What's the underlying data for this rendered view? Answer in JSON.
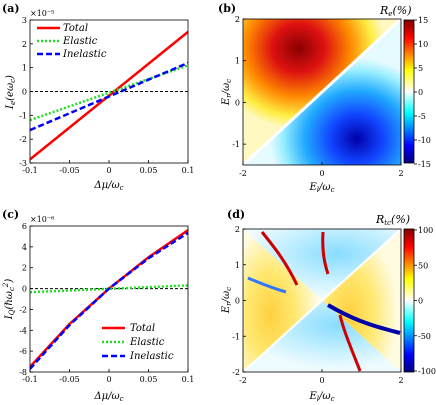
{
  "chart_data": [
    {
      "id": "a",
      "type": "line",
      "panel_label": "(a)",
      "multiplier": "×10⁻⁵",
      "ylabel": "I_e(eω_c)",
      "xlabel": "Δμ/ω_c",
      "xlim": [
        -0.1,
        0.1
      ],
      "ylim": [
        -3,
        3
      ],
      "x_ticks": [
        "-0.1",
        "-0.05",
        "0",
        "0.05",
        "0.1"
      ],
      "y_ticks": [
        "-3",
        "-2",
        "-1",
        "0",
        "1",
        "2",
        "3"
      ],
      "legend": {
        "position": "top-left",
        "labels": [
          "Total",
          "Elastic",
          "Inelastic"
        ]
      },
      "zero_line": true,
      "series": [
        {
          "name": "Total",
          "color": "#ff0000",
          "style": "solid",
          "x": [
            -0.1,
            0.1
          ],
          "y": [
            -2.85,
            2.5
          ]
        },
        {
          "name": "Elastic",
          "color": "#22dd22",
          "style": "dotted",
          "x": [
            -0.1,
            0.1
          ],
          "y": [
            -1.2,
            1.1
          ]
        },
        {
          "name": "Inelastic",
          "color": "#0000ff",
          "style": "dashed",
          "x": [
            -0.1,
            0.1
          ],
          "y": [
            -1.62,
            1.2
          ]
        }
      ]
    },
    {
      "id": "b",
      "type": "heatmap",
      "panel_label": "(b)",
      "colorbar_title": "R_e(%)",
      "xlabel": "E_l/ω_c",
      "ylabel": "E_r/ω_c",
      "xlim": [
        -2,
        2
      ],
      "ylim": [
        -1.5,
        2
      ],
      "x_ticks": [
        "-2",
        "0",
        "2"
      ],
      "y_ticks": [
        "-1",
        "0",
        "1",
        "2"
      ],
      "colorbar_range": [
        -15,
        15
      ],
      "colorbar_ticks": [
        "15",
        "10",
        "5",
        "0",
        "-5",
        "-10",
        "-15"
      ],
      "regions": [
        {
          "side": "above-diagonal",
          "peak_value": 15,
          "peak_at": [
            -0.4,
            1.0
          ]
        },
        {
          "side": "below-diagonal",
          "peak_value": -15,
          "peak_at": [
            0.4,
            -1.0
          ]
        }
      ]
    },
    {
      "id": "c",
      "type": "line",
      "panel_label": "(c)",
      "multiplier": "×10⁻⁶",
      "ylabel": "I_Q(ℏω_c²)",
      "xlabel": "Δμ/ω_c",
      "xlim": [
        -0.1,
        0.1
      ],
      "ylim": [
        -8,
        6
      ],
      "x_ticks": [
        "-0.1",
        "-0.05",
        "0",
        "0.05",
        "0.1"
      ],
      "y_ticks": [
        "-8",
        "-6",
        "-4",
        "-2",
        "0",
        "2",
        "4",
        "6"
      ],
      "legend": {
        "position": "bottom-right",
        "labels": [
          "Total",
          "Elastic",
          "Inelastic"
        ]
      },
      "zero_line": true,
      "series": [
        {
          "name": "Total",
          "color": "#ff0000",
          "style": "solid",
          "x": [
            -0.1,
            -0.05,
            0,
            0.05,
            0.1
          ],
          "y": [
            -7.5,
            -3.4,
            0,
            3.0,
            5.6
          ]
        },
        {
          "name": "Elastic",
          "color": "#22dd22",
          "style": "dotted",
          "x": [
            -0.1,
            0.1
          ],
          "y": [
            -0.35,
            0.3
          ]
        },
        {
          "name": "Inelastic",
          "color": "#0000ff",
          "style": "dashed",
          "x": [
            -0.1,
            -0.05,
            0,
            0.05,
            0.1
          ],
          "y": [
            -7.7,
            -3.5,
            0,
            2.9,
            5.35
          ]
        }
      ]
    },
    {
      "id": "d",
      "type": "heatmap",
      "panel_label": "(d)",
      "colorbar_title": "R_tc(%)",
      "xlabel": "E_l/ω_c",
      "ylabel": "E_r/ω_c",
      "xlim": [
        -2,
        2
      ],
      "ylim": [
        -2,
        2
      ],
      "x_ticks": [
        "-2",
        "0",
        "2"
      ],
      "y_ticks": [
        "-2",
        "-1",
        "0",
        "1",
        "2"
      ],
      "colorbar_range": [
        -100,
        100
      ],
      "colorbar_ticks": [
        "100",
        "50",
        "0",
        "-50",
        "-100"
      ]
    }
  ]
}
